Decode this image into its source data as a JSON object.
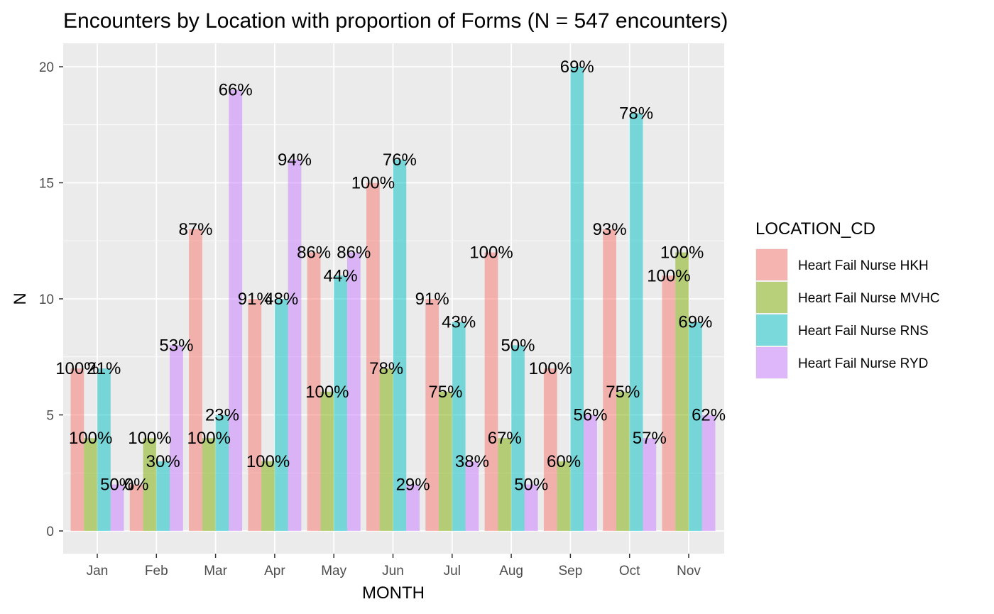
{
  "chart_data": {
    "type": "bar",
    "title": "Encounters by Location with proportion of Forms (N = 547 encounters)",
    "xlabel": "MONTH",
    "ylabel": "N",
    "ylim": [
      0,
      20
    ],
    "y_ticks": [
      0,
      5,
      10,
      15,
      20
    ],
    "grid": true,
    "legend_title": "LOCATION_CD",
    "legend_position": "right",
    "categories": [
      "Jan",
      "Feb",
      "Mar",
      "Apr",
      "May",
      "Jun",
      "Jul",
      "Aug",
      "Sep",
      "Oct",
      "Nov"
    ],
    "series": [
      {
        "name": "Heart Fail Nurse HKH",
        "color": "#F8766D",
        "values": [
          7,
          2,
          13,
          10,
          12,
          15,
          10,
          12,
          7,
          13,
          11
        ],
        "labels": [
          "100%",
          "0%",
          "87%",
          "91%",
          "86%",
          "100%",
          "91%",
          "100%",
          "100%",
          "93%",
          "100%"
        ]
      },
      {
        "name": "Heart Fail Nurse MVHC",
        "color": "#7CAE00",
        "values": [
          4,
          4,
          4,
          3,
          6,
          7,
          6,
          4,
          3,
          6,
          12
        ],
        "labels": [
          "100%",
          "100%",
          "100%",
          "100%",
          "100%",
          "78%",
          "75%",
          "67%",
          "60%",
          "75%",
          "100%"
        ]
      },
      {
        "name": "Heart Fail Nurse RNS",
        "color": "#00BFC4",
        "values": [
          7,
          3,
          5,
          10,
          11,
          16,
          9,
          8,
          20,
          18,
          9
        ],
        "labels": [
          "21%",
          "30%",
          "23%",
          "48%",
          "44%",
          "76%",
          "43%",
          "50%",
          "69%",
          "78%",
          "69%"
        ]
      },
      {
        "name": "Heart Fail Nurse RYD",
        "color": "#C77CFF",
        "values": [
          2,
          8,
          19,
          16,
          12,
          2,
          3,
          2,
          5,
          4,
          5
        ],
        "labels": [
          "50%",
          "53%",
          "66%",
          "94%",
          "86%",
          "29%",
          "38%",
          "50%",
          "56%",
          "57%",
          "62%"
        ]
      }
    ]
  }
}
